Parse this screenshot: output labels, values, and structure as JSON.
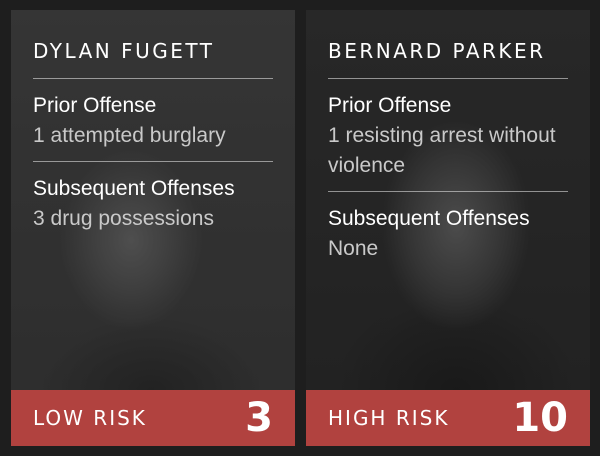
{
  "cards": [
    {
      "name": "DYLAN FUGETT",
      "prior_label": "Prior Offense",
      "prior_value": "1 attempted burglary",
      "subsequent_label": "Subsequent Offenses",
      "subsequent_value": "3 drug possessions",
      "risk_label": "LOW RISK",
      "risk_score": "3"
    },
    {
      "name": "BERNARD PARKER",
      "prior_label": "Prior Offense",
      "prior_value": "1 resisting arrest without violence",
      "subsequent_label": "Subsequent Offenses",
      "subsequent_value": "None",
      "risk_label": "HIGH RISK",
      "risk_score": "10"
    }
  ],
  "colors": {
    "background": "#1e1e1e",
    "risk_bar": "#b1423f",
    "label_text": "#ffffff",
    "value_text": "#c9c9c9"
  }
}
